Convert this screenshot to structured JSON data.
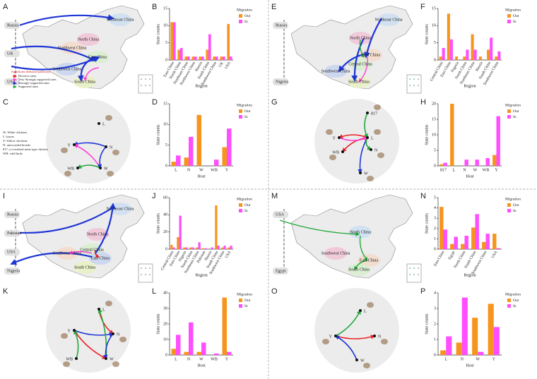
{
  "maps": [
    {
      "letter": "A",
      "foreign": [
        "Russia",
        "UK",
        "USA"
      ],
      "regions": [
        "Northeast China",
        "North China",
        "Northwest China",
        "East China",
        "Southwest China",
        "South China"
      ],
      "legend_title": "Significant diffusion pathways",
      "legend": [
        "Decisive rates",
        "Very Strongly supported rates",
        "Strongly supported rates",
        "Supported rates"
      ]
    },
    {
      "letter": "E",
      "foreign": [
        "Russia",
        "Nigeria"
      ],
      "regions": [
        "Northeast China",
        "North China",
        "East China",
        "Central China",
        "Southwest China",
        "South China"
      ]
    },
    {
      "letter": "I",
      "foreign": [
        "Russia",
        "Pakistan",
        "USA",
        "Nigeria"
      ],
      "regions": [
        "Northeast China",
        "North China",
        "Southwest China",
        "Central China",
        "East China",
        "South China"
      ]
    },
    {
      "letter": "M",
      "foreign": [
        "USA",
        "Egypt"
      ],
      "regions": [
        "North China",
        "Southwest China",
        "East China",
        "South China"
      ]
    }
  ],
  "networks": [
    {
      "letter": "C",
      "nodes": [
        "L",
        "Y",
        "N",
        "WB",
        "W"
      ],
      "key": [
        "W: White chickens",
        "L: layers",
        "Y: Yellow chickens",
        "N: unrecorded breeds",
        "817: a crossbred meat-type chicken",
        "WB: wild birds"
      ]
    },
    {
      "letter": "G",
      "nodes": [
        "817",
        "Y",
        "L",
        "N",
        "WB",
        "W"
      ]
    },
    {
      "letter": "K",
      "nodes": [
        "L",
        "Y",
        "N",
        "WB",
        "W"
      ]
    },
    {
      "letter": "O",
      "nodes": [
        "L",
        "Y",
        "N",
        "W"
      ]
    }
  ],
  "chart_data": [
    {
      "letter": "B",
      "type": "bar",
      "xlabel": "Region",
      "ylabel": "State counts",
      "legend_title": "Migration",
      "categories": [
        "East China",
        "North China",
        "Northeast China",
        "Northwest China",
        "Russia",
        "South China",
        "Southwest China",
        "UK",
        "USA"
      ],
      "series": [
        {
          "name": "Out",
          "color": "#f7941d",
          "values": [
            11,
            3,
            1,
            1,
            1,
            3,
            1,
            1,
            10.5
          ]
        },
        {
          "name": "In",
          "color": "#ff4dff",
          "values": [
            11,
            3.5,
            1,
            1,
            1,
            7.5,
            1,
            1,
            1
          ]
        }
      ],
      "ylim": [
        0,
        15
      ],
      "yticks": [
        0,
        5,
        10,
        15
      ]
    },
    {
      "letter": "D",
      "type": "bar",
      "xlabel": "Host",
      "ylabel": "State counts",
      "legend_title": "Migration",
      "categories": [
        "L",
        "N",
        "W",
        "WB",
        "Y"
      ],
      "series": [
        {
          "name": "Out",
          "color": "#f7941d",
          "values": [
            1,
            2,
            12.3,
            0,
            4.5
          ]
        },
        {
          "name": "In",
          "color": "#ff4dff",
          "values": [
            2.5,
            7,
            0,
            1.5,
            9
          ]
        }
      ],
      "ylim": [
        0,
        15
      ],
      "yticks": [
        0,
        5,
        10,
        15
      ]
    },
    {
      "letter": "F",
      "type": "bar",
      "xlabel": "Region",
      "ylabel": "State counts",
      "legend_title": "Migration",
      "categories": [
        "Central China",
        "East China",
        "Nigeria",
        "North China",
        "Northeast China",
        "Russia",
        "South China",
        "Southwest China"
      ],
      "series": [
        {
          "name": "Out",
          "color": "#f7941d",
          "values": [
            1,
            13.5,
            1,
            1,
            7.5,
            1,
            3,
            1
          ]
        },
        {
          "name": "In",
          "color": "#ff4dff",
          "values": [
            3.5,
            6,
            0,
            3,
            3,
            0,
            6.5,
            2.5
          ]
        }
      ],
      "ylim": [
        0,
        15
      ],
      "yticks": [
        0,
        5,
        10,
        15
      ]
    },
    {
      "letter": "H",
      "type": "bar",
      "xlabel": "Host",
      "ylabel": "State counts",
      "legend_title": "Migration",
      "categories": [
        "817",
        "L",
        "N",
        "W",
        "WB",
        "Y"
      ],
      "series": [
        {
          "name": "Out",
          "color": "#f7941d",
          "values": [
            0.5,
            20,
            0,
            0,
            0,
            3.5
          ]
        },
        {
          "name": "In",
          "color": "#ff4dff",
          "values": [
            1,
            0,
            2,
            2,
            2.5,
            16
          ]
        }
      ],
      "ylim": [
        0,
        20
      ],
      "yticks": [
        0,
        5,
        10,
        15,
        20
      ]
    },
    {
      "letter": "J",
      "type": "bar",
      "xlabel": "Region",
      "ylabel": "State counts",
      "legend_title": "Migration",
      "categories": [
        "Central China",
        "East China",
        "Nigeria",
        "North China",
        "Northeast China",
        "Pakistan",
        "Russia",
        "South China",
        "Southwest China",
        "USA"
      ],
      "series": [
        {
          "name": "Out",
          "color": "#f7941d",
          "values": [
            5,
            14,
            2,
            2,
            2,
            1,
            0,
            51,
            2,
            2
          ]
        },
        {
          "name": "In",
          "color": "#ff4dff",
          "values": [
            2,
            39,
            2,
            2,
            8,
            1,
            2,
            4,
            4,
            4
          ]
        }
      ],
      "ylim": [
        0,
        60
      ],
      "yticks": [
        0,
        20,
        40,
        60
      ]
    },
    {
      "letter": "L",
      "type": "bar",
      "xlabel": "Host",
      "ylabel": "State counts",
      "legend_title": "Migration",
      "categories": [
        "L",
        "N",
        "W",
        "WB",
        "Y"
      ],
      "series": [
        {
          "name": "Out",
          "color": "#f7941d",
          "values": [
            4,
            2,
            2,
            0,
            37
          ]
        },
        {
          "name": "In",
          "color": "#ff4dff",
          "values": [
            13,
            21,
            8,
            1,
            2
          ]
        }
      ],
      "ylim": [
        0,
        40
      ],
      "yticks": [
        0,
        10,
        20,
        30,
        40
      ]
    },
    {
      "letter": "N",
      "type": "bar",
      "xlabel": "Region",
      "ylabel": "State counts",
      "legend_title": "Migration",
      "categories": [
        "East China",
        "Egypt",
        "North China",
        "South China",
        "Southwest China",
        "USA"
      ],
      "series": [
        {
          "name": "Out",
          "color": "#f7941d",
          "values": [
            4.1,
            0.5,
            0.5,
            2.1,
            0.7,
            1.5
          ]
        },
        {
          "name": "In",
          "color": "#ff4dff",
          "values": [
            1.9,
            1.2,
            1.3,
            3.4,
            1.5,
            0.1
          ]
        }
      ],
      "ylim": [
        0,
        5
      ],
      "yticks": [
        0,
        1,
        2,
        3,
        4,
        5
      ]
    },
    {
      "letter": "P",
      "type": "bar",
      "xlabel": "Host",
      "ylabel": "State counts",
      "legend_title": "Migration",
      "categories": [
        "L",
        "N",
        "W",
        "Y"
      ],
      "series": [
        {
          "name": "Out",
          "color": "#f7941d",
          "values": [
            0.3,
            0.8,
            2.4,
            3.3
          ]
        },
        {
          "name": "In",
          "color": "#ff4dff",
          "values": [
            1.2,
            3.7,
            0.2,
            1.8
          ]
        }
      ],
      "ylim": [
        0,
        4
      ],
      "yticks": [
        0,
        1,
        2,
        3,
        4
      ]
    }
  ]
}
